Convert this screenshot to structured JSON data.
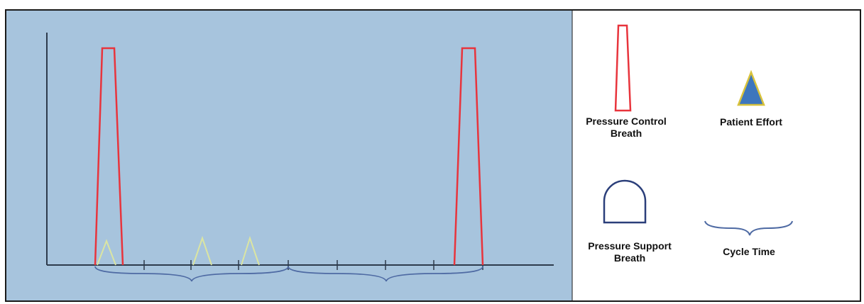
{
  "colors": {
    "panel_background": "#a7c4dd",
    "frame_border": "#1a1a1a",
    "axis": "#2d3b4c",
    "pressure_control": "#e8343c",
    "patient_effort_fill": "#3d76bd",
    "patient_effort_outline": "#d8c23c",
    "patient_effort_faint": "#dbe5a2",
    "pressure_support": "#2b3f7a",
    "cycle_time": "#4e6aa3"
  },
  "legend": {
    "pressure_control": {
      "label_line1": "Pressure Control",
      "label_line2": "Breath",
      "icon": "trapezoid-outline-icon"
    },
    "patient_effort": {
      "label": "Patient Effort",
      "icon": "triangle-icon"
    },
    "pressure_support": {
      "label_line1": "Pressure Support",
      "label_line2": "Breath",
      "icon": "arch-icon"
    },
    "cycle_time": {
      "label": "Cycle Time",
      "icon": "brace-icon"
    }
  },
  "waveform": {
    "pressure_control_breaths": 2,
    "patient_efforts": 3,
    "cycle_times": 2,
    "tick_marks": 8
  }
}
